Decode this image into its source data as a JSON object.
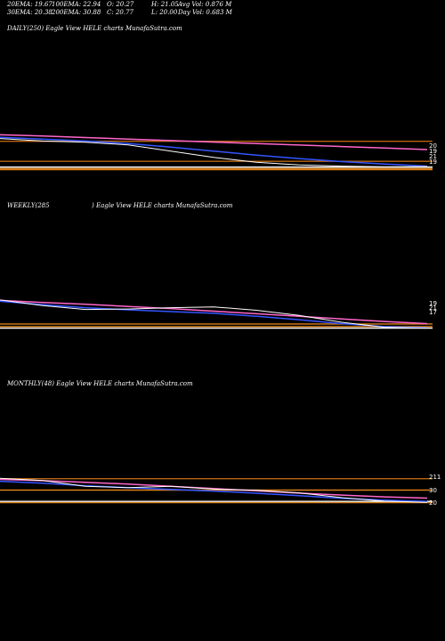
{
  "header": {
    "row1": [
      "20EMA: 19.67",
      "100EMA: 22.94",
      "O: 20.27",
      "H: 21.05",
      "Avg Vol: 0.876  M"
    ],
    "row2": [
      "30EMA: 20.38",
      "200EMA: 30.88",
      "C: 20.77",
      "L: 20.00",
      "Day Vol: 0.683 M"
    ]
  },
  "panels": {
    "daily": {
      "label": "DAILY(250) Eagle   View  HELE charts MunafaSutra.com"
    },
    "weekly": {
      "label_left": "WEEKLY(285",
      "label_right": ") Eagle   View  HELE charts MunafaSutra.com"
    },
    "monthly": {
      "label": "MONTHLY(48) Eagle   View  HELE charts MunafaSutra.com"
    }
  },
  "chart_data": [
    {
      "type": "line",
      "name_panel": "daily",
      "ylim": [
        18,
        34
      ],
      "tick_labels": [
        "20",
        "19",
        "21",
        "19"
      ],
      "levels": [
        {
          "value": 30.9,
          "color": "#b8650f"
        },
        {
          "value": 22.9,
          "color": "#b8650f"
        },
        {
          "value": 20.6,
          "color": "#ffffff"
        },
        {
          "value": 20.0,
          "color": "#d97f1a"
        },
        {
          "value": 19.6,
          "color": "#d97f1a"
        }
      ],
      "series": [
        {
          "color": "#ff66cc",
          "values": [
            33.5,
            33.0,
            32.4,
            31.8,
            31.2,
            30.6,
            30.0,
            29.4,
            28.8,
            28.2,
            27.6
          ]
        },
        {
          "color": "#3355ff",
          "values": [
            32.5,
            31.8,
            31.0,
            30.0,
            28.6,
            27.0,
            25.4,
            24.0,
            22.8,
            21.8,
            21.0
          ]
        },
        {
          "color": "#ffffff",
          "values": [
            32.0,
            31.0,
            30.5,
            29.5,
            27.0,
            24.5,
            22.5,
            21.5,
            21.0,
            20.7,
            20.8
          ]
        }
      ]
    },
    {
      "type": "line",
      "name_panel": "weekly",
      "ylim": [
        15,
        160
      ],
      "tick_labels": [
        "19",
        "21",
        "17"
      ],
      "levels": [
        {
          "value": 40,
          "color": "#d97f1a"
        },
        {
          "value": 28,
          "color": "#d97f1a"
        },
        {
          "value": 21,
          "color": "#ffffff"
        }
      ],
      "series": [
        {
          "color": "#ff66cc",
          "values": [
            150,
            140,
            132,
            122,
            112,
            100,
            88,
            76,
            64,
            52,
            42
          ]
        },
        {
          "color": "#3355ff",
          "values": [
            146,
            130,
            116,
            106,
            98,
            90,
            76,
            60,
            42,
            28,
            22
          ]
        },
        {
          "color": "#ffffff",
          "values": [
            152,
            126,
            108,
            110,
            116,
            120,
            104,
            80,
            48,
            25,
            21
          ]
        }
      ]
    },
    {
      "type": "line",
      "name_panel": "monthly",
      "ylim": [
        10,
        230
      ],
      "tick_labels": [
        "211",
        "30",
        "20"
      ],
      "levels": [
        {
          "value": 211,
          "color": "#b8650f"
        },
        {
          "value": 120,
          "color": "#d97f1a"
        },
        {
          "value": 30,
          "color": "#ffffff"
        },
        {
          "value": 20,
          "color": "#d97f1a"
        }
      ],
      "series": [
        {
          "color": "#ff66cc",
          "values": [
            205,
            195,
            182,
            168,
            150,
            132,
            114,
            96,
            80,
            66,
            56
          ]
        },
        {
          "color": "#3355ff",
          "values": [
            190,
            175,
            155,
            140,
            125,
            112,
            95,
            75,
            55,
            40,
            30
          ]
        },
        {
          "color": "#ffffff",
          "values": [
            214,
            196,
            150,
            140,
            150,
            128,
            118,
            98,
            60,
            32,
            22
          ]
        }
      ]
    }
  ]
}
